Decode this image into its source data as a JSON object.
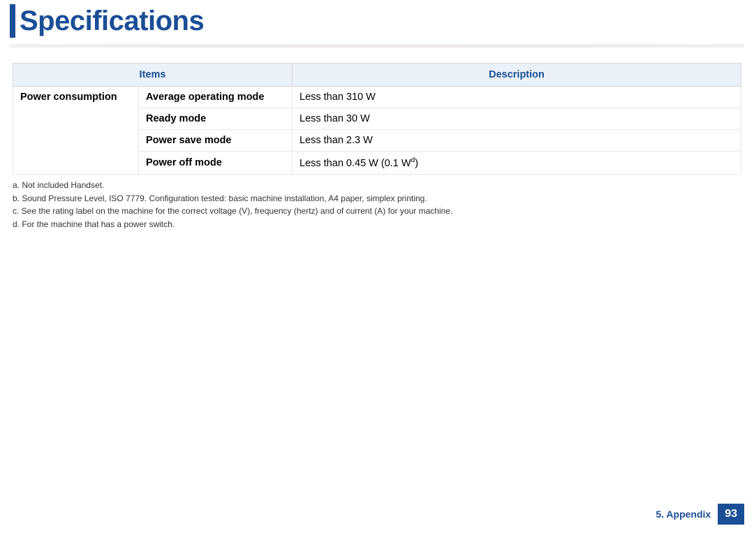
{
  "title": "Specifications",
  "table": {
    "header_items": "Items",
    "header_description": "Description",
    "group_label": "Power consumption",
    "rows": [
      {
        "sub": "Average operating mode",
        "desc": "Less than 310 W"
      },
      {
        "sub": "Ready mode",
        "desc": "Less than 30 W"
      },
      {
        "sub": "Power save mode",
        "desc": "Less than 2.3 W"
      },
      {
        "sub": "Power off mode",
        "desc_prefix": "Less than 0.45 W (0.1 W",
        "desc_sup": "d",
        "desc_suffix": ")"
      }
    ]
  },
  "footnotes": {
    "a": "a.  Not included Handset.",
    "b": "b.  Sound Pressure Level, ISO 7779. Configuration tested: basic machine installation, A4 paper, simplex printing.",
    "c": "c.  See the rating label on the machine for the correct voltage (V), frequency (hertz) and of current (A) for your machine.",
    "d": "d.  For the machine that has a power switch."
  },
  "footer": {
    "section": "5.  Appendix",
    "page": "93"
  },
  "colors": {
    "brand": "#1a4e96",
    "header_bg": "#eaf1f8",
    "border": "#e6e6e6"
  }
}
